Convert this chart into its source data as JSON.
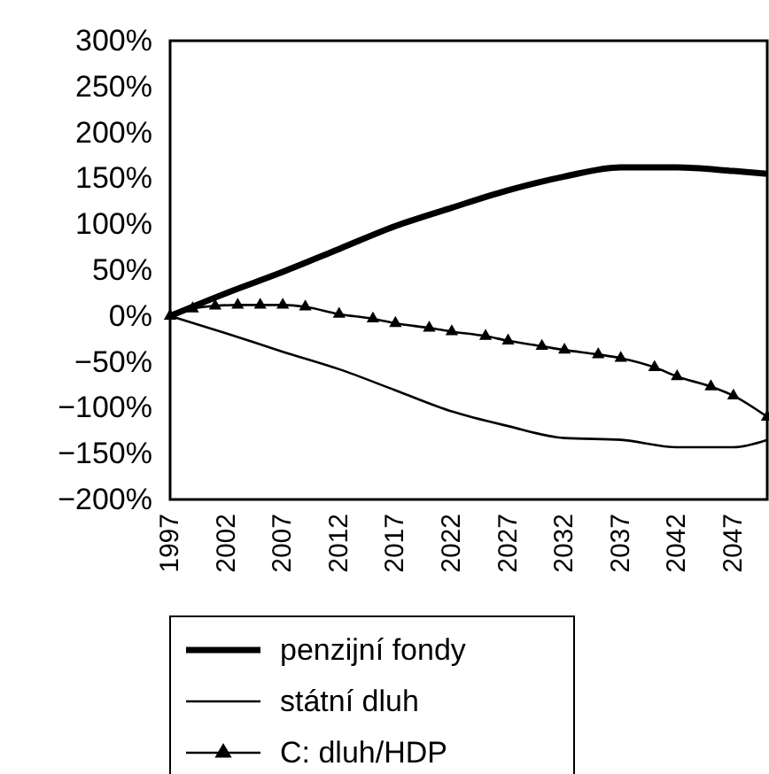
{
  "chart_data": {
    "type": "line",
    "legend": "bottom",
    "grid": false,
    "xlim": [
      1997,
      2050
    ],
    "xticks": [
      {
        "value": 1997,
        "label": "1997"
      },
      {
        "value": 2002,
        "label": "2002"
      },
      {
        "value": 2007,
        "label": "2007"
      },
      {
        "value": 2012,
        "label": "2012"
      },
      {
        "value": 2017,
        "label": "2017"
      },
      {
        "value": 2022,
        "label": "2022"
      },
      {
        "value": 2027,
        "label": "2027"
      },
      {
        "value": 2032,
        "label": "2032"
      },
      {
        "value": 2037,
        "label": "2037"
      },
      {
        "value": 2042,
        "label": "2042"
      },
      {
        "value": 2047,
        "label": "2047"
      }
    ],
    "ylim": [
      -200,
      300
    ],
    "yticks": [
      {
        "value": 300,
        "label": "300%"
      },
      {
        "value": 250,
        "label": "250%"
      },
      {
        "value": 200,
        "label": "200%"
      },
      {
        "value": 150,
        "label": "150%"
      },
      {
        "value": 100,
        "label": "100%"
      },
      {
        "value": 50,
        "label": "50%"
      },
      {
        "value": 0,
        "label": "0%"
      },
      {
        "value": -50,
        "label": "−50%"
      },
      {
        "value": -100,
        "label": "−100%"
      },
      {
        "value": -150,
        "label": "−150%"
      },
      {
        "value": -200,
        "label": "−200%"
      }
    ],
    "x": [
      1997,
      2002,
      2007,
      2012,
      2017,
      2022,
      2027,
      2032,
      2037,
      2042,
      2047,
      2050
    ],
    "series": [
      {
        "name": "penzijní fondy",
        "color": "#000000",
        "marker": "none",
        "values": [
          0,
          25,
          48,
          73,
          98,
          118,
          137,
          152,
          162,
          162,
          158,
          155
        ]
      },
      {
        "name": "státní dluh",
        "color": "#000000",
        "marker": "none",
        "values": [
          0,
          -19,
          -39,
          -58,
          -81,
          -104,
          -120,
          -133,
          -135,
          -143,
          -143,
          -135
        ]
      },
      {
        "name": "C: dluh/HDP",
        "color": "#000000",
        "marker": "triangle",
        "x": [
          1997,
          1999,
          2001,
          2003,
          2005,
          2007,
          2009,
          2012,
          2015,
          2017,
          2020,
          2022,
          2025,
          2027,
          2030,
          2032,
          2035,
          2037,
          2040,
          2042,
          2045,
          2047,
          2050
        ],
        "values": [
          0,
          8,
          11,
          12,
          12,
          12,
          10,
          2,
          -3,
          -8,
          -13,
          -17,
          -22,
          -27,
          -33,
          -37,
          -42,
          -46,
          -56,
          -66,
          -77,
          -87,
          -110
        ]
      }
    ]
  }
}
